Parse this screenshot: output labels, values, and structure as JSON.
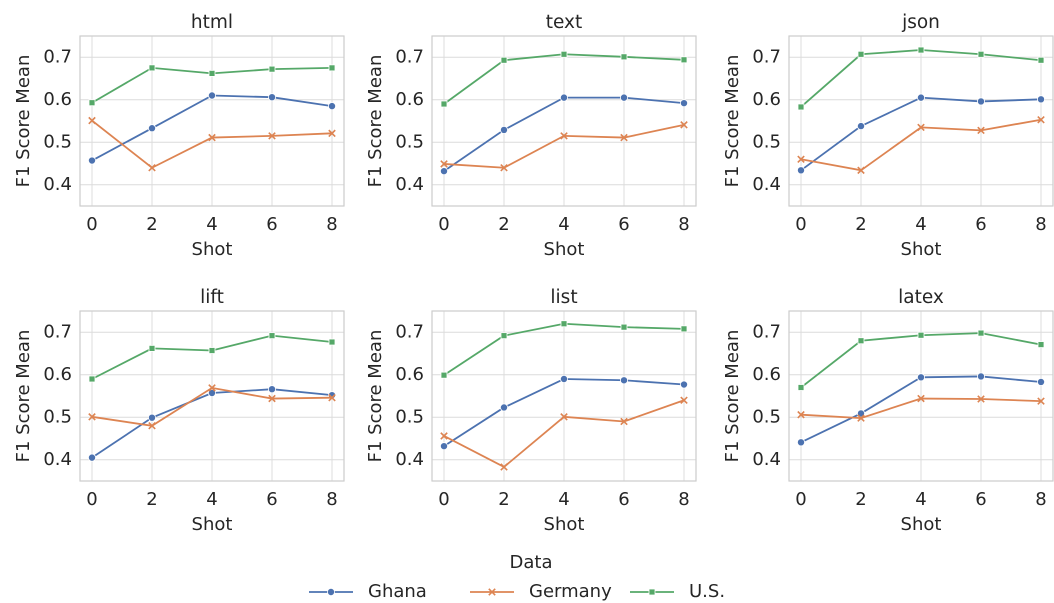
{
  "chart_data": [
    {
      "type": "line",
      "title": "html",
      "xlabel": "Shot",
      "ylabel": "F1 Score Mean",
      "x": [
        0,
        2,
        4,
        6,
        8
      ],
      "series": [
        {
          "name": "Ghana",
          "color": "#4c72b0",
          "marker": "circle",
          "values": [
            0.457,
            0.533,
            0.61,
            0.606,
            0.585
          ]
        },
        {
          "name": "Germany",
          "color": "#dd8452",
          "marker": "x",
          "values": [
            0.551,
            0.44,
            0.511,
            0.515,
            0.521
          ]
        },
        {
          "name": "U.S.",
          "color": "#55a868",
          "marker": "square",
          "values": [
            0.593,
            0.675,
            0.662,
            0.672,
            0.675
          ]
        }
      ],
      "xlim": [
        -0.4,
        8.4
      ],
      "ylim": [
        0.35,
        0.75
      ],
      "xticks": [
        0,
        2,
        4,
        6,
        8
      ],
      "yticks": [
        0.4,
        0.5,
        0.6,
        0.7
      ],
      "grid": true
    },
    {
      "type": "line",
      "title": "text",
      "xlabel": "Shot",
      "ylabel": "F1 Score Mean",
      "x": [
        0,
        2,
        4,
        6,
        8
      ],
      "series": [
        {
          "name": "Ghana",
          "color": "#4c72b0",
          "marker": "circle",
          "values": [
            0.432,
            0.529,
            0.605,
            0.605,
            0.592
          ]
        },
        {
          "name": "Germany",
          "color": "#dd8452",
          "marker": "x",
          "values": [
            0.449,
            0.44,
            0.515,
            0.511,
            0.541
          ]
        },
        {
          "name": "U.S.",
          "color": "#55a868",
          "marker": "square",
          "values": [
            0.59,
            0.693,
            0.707,
            0.701,
            0.694
          ]
        }
      ],
      "xlim": [
        -0.4,
        8.4
      ],
      "ylim": [
        0.35,
        0.75
      ],
      "xticks": [
        0,
        2,
        4,
        6,
        8
      ],
      "yticks": [
        0.4,
        0.5,
        0.6,
        0.7
      ],
      "grid": true
    },
    {
      "type": "line",
      "title": "json",
      "xlabel": "Shot",
      "ylabel": "F1 Score Mean",
      "x": [
        0,
        2,
        4,
        6,
        8
      ],
      "series": [
        {
          "name": "Ghana",
          "color": "#4c72b0",
          "marker": "circle",
          "values": [
            0.434,
            0.538,
            0.605,
            0.596,
            0.601
          ]
        },
        {
          "name": "Germany",
          "color": "#dd8452",
          "marker": "x",
          "values": [
            0.46,
            0.434,
            0.535,
            0.528,
            0.553
          ]
        },
        {
          "name": "U.S.",
          "color": "#55a868",
          "marker": "square",
          "values": [
            0.583,
            0.707,
            0.717,
            0.707,
            0.693
          ]
        }
      ],
      "xlim": [
        -0.4,
        8.4
      ],
      "ylim": [
        0.35,
        0.75
      ],
      "xticks": [
        0,
        2,
        4,
        6,
        8
      ],
      "yticks": [
        0.4,
        0.5,
        0.6,
        0.7
      ],
      "grid": true
    },
    {
      "type": "line",
      "title": "lift",
      "xlabel": "Shot",
      "ylabel": "F1 Score Mean",
      "x": [
        0,
        2,
        4,
        6,
        8
      ],
      "series": [
        {
          "name": "Ghana",
          "color": "#4c72b0",
          "marker": "circle",
          "values": [
            0.405,
            0.499,
            0.557,
            0.566,
            0.552
          ]
        },
        {
          "name": "Germany",
          "color": "#dd8452",
          "marker": "x",
          "values": [
            0.501,
            0.48,
            0.569,
            0.544,
            0.546
          ]
        },
        {
          "name": "U.S.",
          "color": "#55a868",
          "marker": "square",
          "values": [
            0.59,
            0.662,
            0.657,
            0.692,
            0.677
          ]
        }
      ],
      "xlim": [
        -0.4,
        8.4
      ],
      "ylim": [
        0.35,
        0.75
      ],
      "xticks": [
        0,
        2,
        4,
        6,
        8
      ],
      "yticks": [
        0.4,
        0.5,
        0.6,
        0.7
      ],
      "grid": true
    },
    {
      "type": "line",
      "title": "list",
      "xlabel": "Shot",
      "ylabel": "F1 Score Mean",
      "x": [
        0,
        2,
        4,
        6,
        8
      ],
      "series": [
        {
          "name": "Ghana",
          "color": "#4c72b0",
          "marker": "circle",
          "values": [
            0.432,
            0.523,
            0.59,
            0.587,
            0.577
          ]
        },
        {
          "name": "Germany",
          "color": "#dd8452",
          "marker": "x",
          "values": [
            0.456,
            0.383,
            0.501,
            0.49,
            0.54
          ]
        },
        {
          "name": "U.S.",
          "color": "#55a868",
          "marker": "square",
          "values": [
            0.599,
            0.692,
            0.72,
            0.712,
            0.708
          ]
        }
      ],
      "xlim": [
        -0.4,
        8.4
      ],
      "ylim": [
        0.35,
        0.75
      ],
      "xticks": [
        0,
        2,
        4,
        6,
        8
      ],
      "yticks": [
        0.4,
        0.5,
        0.6,
        0.7
      ],
      "grid": true
    },
    {
      "type": "line",
      "title": "latex",
      "xlabel": "Shot",
      "ylabel": "F1 Score Mean",
      "x": [
        0,
        2,
        4,
        6,
        8
      ],
      "series": [
        {
          "name": "Ghana",
          "color": "#4c72b0",
          "marker": "circle",
          "values": [
            0.441,
            0.509,
            0.594,
            0.596,
            0.583
          ]
        },
        {
          "name": "Germany",
          "color": "#dd8452",
          "marker": "x",
          "values": [
            0.506,
            0.498,
            0.544,
            0.543,
            0.538
          ]
        },
        {
          "name": "U.S.",
          "color": "#55a868",
          "marker": "square",
          "values": [
            0.57,
            0.68,
            0.693,
            0.698,
            0.671
          ]
        }
      ],
      "xlim": [
        -0.4,
        8.4
      ],
      "ylim": [
        0.35,
        0.75
      ],
      "xticks": [
        0,
        2,
        4,
        6,
        8
      ],
      "yticks": [
        0.4,
        0.5,
        0.6,
        0.7
      ],
      "grid": true
    }
  ],
  "legend": {
    "title": "Data"
  }
}
